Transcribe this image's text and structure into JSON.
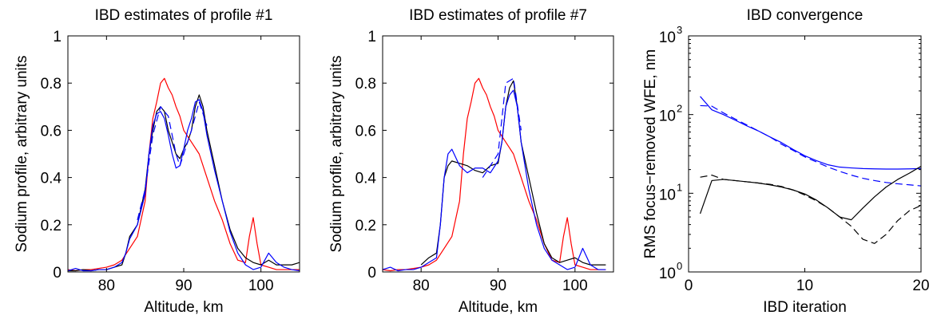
{
  "colors": {
    "red": "#ff0000",
    "black": "#000000",
    "blue": "#0000ff"
  },
  "chart_data": [
    {
      "type": "line",
      "title": "IBD estimates of profile #1",
      "xlabel": "Altitude, km",
      "ylabel": "Sodium profile, arbitrary units",
      "xlim": [
        75,
        105
      ],
      "ylim": [
        0,
        1
      ],
      "xticks": [
        "80",
        "90",
        "100"
      ],
      "yticks": [
        "0",
        "0.2",
        "0.4",
        "0.6",
        "0.8",
        "1"
      ],
      "series": [
        {
          "color": "red",
          "dash": "solid",
          "x": [
            75,
            76,
            77,
            78,
            79,
            80,
            81,
            82,
            83,
            84,
            85,
            85.5,
            86,
            86.5,
            87,
            87.5,
            88,
            88.5,
            89,
            89.5,
            90,
            91,
            92,
            93,
            94,
            95,
            96,
            97,
            98,
            98.5,
            99,
            99.5,
            100,
            101,
            102,
            103,
            104,
            105
          ],
          "y": [
            0.01,
            0.005,
            0.01,
            0.01,
            0.015,
            0.02,
            0.03,
            0.05,
            0.1,
            0.15,
            0.3,
            0.5,
            0.65,
            0.72,
            0.8,
            0.82,
            0.78,
            0.75,
            0.7,
            0.66,
            0.6,
            0.55,
            0.5,
            0.4,
            0.3,
            0.22,
            0.12,
            0.05,
            0.04,
            0.15,
            0.23,
            0.12,
            0.03,
            0.02,
            0.01,
            0.01,
            0.01,
            0.01
          ]
        },
        {
          "color": "black",
          "dash": "solid",
          "x": [
            75,
            76,
            77,
            78,
            79,
            80,
            81,
            82,
            82.5,
            83,
            84,
            85,
            85.5,
            86,
            86.5,
            87,
            87.5,
            88,
            88.5,
            89,
            89.5,
            90,
            90.5,
            91,
            91.5,
            92,
            92.5,
            93,
            94,
            95,
            96,
            97,
            98,
            99,
            100,
            101,
            102,
            103,
            104,
            105
          ],
          "y": [
            0.005,
            0.005,
            0.01,
            0.005,
            0.01,
            0.01,
            0.02,
            0.03,
            0.08,
            0.15,
            0.2,
            0.35,
            0.5,
            0.6,
            0.68,
            0.7,
            0.68,
            0.6,
            0.55,
            0.5,
            0.48,
            0.52,
            0.55,
            0.6,
            0.7,
            0.75,
            0.7,
            0.6,
            0.45,
            0.3,
            0.18,
            0.1,
            0.06,
            0.04,
            0.03,
            0.05,
            0.03,
            0.03,
            0.03,
            0.04
          ]
        },
        {
          "color": "blue",
          "dash": "solid",
          "x": [
            75,
            76,
            77,
            78,
            79,
            80,
            81,
            82,
            82.5,
            83,
            84,
            85,
            85.5,
            86,
            86.5,
            87,
            87.5,
            88,
            88.5,
            89,
            89.5,
            90,
            90.5,
            91,
            91.5,
            92,
            92.5,
            93,
            94,
            95,
            96,
            97,
            98,
            99,
            100,
            101,
            102,
            103,
            104,
            105
          ],
          "y": [
            0.005,
            0.015,
            0.005,
            0.005,
            0.01,
            0.01,
            0.02,
            0.04,
            0.08,
            0.14,
            0.2,
            0.33,
            0.5,
            0.62,
            0.67,
            0.68,
            0.65,
            0.58,
            0.5,
            0.44,
            0.45,
            0.52,
            0.6,
            0.65,
            0.72,
            0.73,
            0.68,
            0.58,
            0.43,
            0.3,
            0.17,
            0.08,
            0.03,
            0.01,
            0.02,
            0.08,
            0.04,
            0.02,
            0.01,
            0.005
          ]
        },
        {
          "color": "blue",
          "dash": "dashed",
          "x": [
            84,
            85,
            86,
            87,
            88,
            89,
            89.5,
            90,
            91,
            92,
            93
          ],
          "y": [
            0.22,
            0.35,
            0.58,
            0.7,
            0.66,
            0.5,
            0.45,
            0.5,
            0.6,
            0.72,
            0.62
          ]
        }
      ]
    },
    {
      "type": "line",
      "title": "IBD estimates of profile #7",
      "xlabel": "Altitude, km",
      "ylabel": "Sodium profile, arbitrary units",
      "xlim": [
        75,
        105
      ],
      "ylim": [
        0,
        1
      ],
      "xticks": [
        "80",
        "90",
        "100"
      ],
      "yticks": [
        "0",
        "0.2",
        "0.4",
        "0.6",
        "0.8",
        "1"
      ],
      "series": [
        {
          "color": "red",
          "dash": "solid",
          "x": [
            75,
            76,
            77,
            78,
            79,
            80,
            81,
            82,
            83,
            84,
            85,
            85.5,
            86,
            86.5,
            87,
            87.5,
            88,
            88.5,
            89,
            89.5,
            90,
            91,
            92,
            93,
            94,
            95,
            96,
            97,
            98,
            98.5,
            99,
            99.5,
            100,
            101,
            102,
            103,
            104
          ],
          "y": [
            0.01,
            0.005,
            0.01,
            0.01,
            0.015,
            0.02,
            0.03,
            0.05,
            0.1,
            0.15,
            0.3,
            0.5,
            0.65,
            0.72,
            0.8,
            0.82,
            0.78,
            0.75,
            0.7,
            0.66,
            0.6,
            0.55,
            0.5,
            0.4,
            0.3,
            0.22,
            0.12,
            0.05,
            0.04,
            0.15,
            0.23,
            0.12,
            0.03,
            0.02,
            0.01,
            0.01,
            0.01
          ]
        },
        {
          "color": "black",
          "dash": "solid",
          "x": [
            80,
            81,
            82,
            82.5,
            83,
            83.5,
            84,
            85,
            86,
            87,
            88,
            89,
            90,
            90.5,
            91,
            91.5,
            92,
            92.5,
            93,
            94,
            95,
            96,
            97,
            98,
            99,
            100,
            101,
            102,
            103,
            104
          ],
          "y": [
            0.03,
            0.06,
            0.08,
            0.2,
            0.4,
            0.45,
            0.47,
            0.46,
            0.45,
            0.43,
            0.42,
            0.45,
            0.46,
            0.55,
            0.7,
            0.78,
            0.81,
            0.7,
            0.55,
            0.4,
            0.25,
            0.12,
            0.06,
            0.04,
            0.05,
            0.06,
            0.04,
            0.03,
            0.03,
            0.03
          ]
        },
        {
          "color": "blue",
          "dash": "solid",
          "x": [
            75,
            76,
            77,
            78,
            79,
            80,
            81,
            82,
            82.5,
            83,
            83.5,
            84,
            85,
            86,
            87,
            88,
            89,
            90,
            90.5,
            91,
            91.5,
            92,
            92.5,
            93,
            94,
            95,
            96,
            97,
            98,
            99,
            100,
            101,
            102,
            103,
            104
          ],
          "y": [
            0.01,
            0.02,
            0.005,
            0.01,
            0.01,
            0.02,
            0.04,
            0.06,
            0.2,
            0.4,
            0.5,
            0.52,
            0.45,
            0.42,
            0.44,
            0.44,
            0.42,
            0.47,
            0.55,
            0.7,
            0.75,
            0.77,
            0.7,
            0.55,
            0.35,
            0.2,
            0.1,
            0.05,
            0.03,
            0.01,
            0.02,
            0.1,
            0.03,
            0.01,
            0.01
          ]
        },
        {
          "color": "blue",
          "dash": "dashed",
          "x": [
            88,
            89,
            90,
            91,
            92,
            93
          ],
          "y": [
            0.4,
            0.45,
            0.5,
            0.8,
            0.82,
            0.6
          ]
        }
      ]
    },
    {
      "type": "line",
      "title": "IBD convergence",
      "xlabel": "IBD iteration",
      "ylabel": "RMS focus−removed WFE, nm",
      "yscale": "log",
      "xlim": [
        0,
        20
      ],
      "ylim": [
        1,
        1000
      ],
      "xticks": [
        "0",
        "10",
        "20"
      ],
      "ytick_values": [
        1,
        10,
        100,
        1000
      ],
      "series": [
        {
          "color": "blue",
          "dash": "solid",
          "x": [
            1,
            2,
            3,
            4,
            5,
            6,
            7,
            8,
            9,
            10,
            11,
            12,
            13,
            14,
            15,
            16,
            17,
            18,
            19,
            20
          ],
          "y": [
            170,
            115,
            100,
            85,
            72,
            62,
            52,
            44,
            36,
            30,
            26,
            23,
            21.5,
            21,
            20.6,
            20.4,
            20.3,
            20.3,
            20.4,
            20.6
          ]
        },
        {
          "color": "blue",
          "dash": "dashed",
          "x": [
            1,
            2,
            3,
            4,
            5,
            6,
            7,
            8,
            9,
            10,
            11,
            12,
            13,
            14,
            15,
            16,
            17,
            18,
            19,
            20
          ],
          "y": [
            130,
            128,
            105,
            88,
            74,
            62,
            52,
            42,
            35,
            29,
            25,
            21.5,
            19,
            17,
            15.5,
            14.5,
            13.7,
            13.2,
            12.8,
            12.4
          ]
        },
        {
          "color": "black",
          "dash": "solid",
          "x": [
            1,
            2,
            3,
            4,
            5,
            6,
            7,
            8,
            9,
            10,
            11,
            12,
            13,
            14,
            15,
            16,
            17,
            18,
            19,
            20
          ],
          "y": [
            5.5,
            14.5,
            15,
            14.5,
            14,
            13.5,
            12.8,
            12,
            11,
            9.8,
            8.2,
            6.5,
            5,
            4.6,
            6.5,
            9,
            12,
            15,
            18,
            22
          ]
        },
        {
          "color": "black",
          "dash": "dashed",
          "x": [
            1,
            2,
            3,
            4,
            5,
            6,
            7,
            8,
            9,
            10,
            11,
            12,
            13,
            14,
            15,
            16,
            17,
            18,
            19,
            20
          ],
          "y": [
            16,
            17,
            15,
            14.5,
            14,
            13.5,
            13,
            12.2,
            11,
            9.5,
            8,
            6.5,
            5,
            3.8,
            2.6,
            2.3,
            3,
            4.5,
            6,
            7
          ]
        }
      ]
    }
  ]
}
